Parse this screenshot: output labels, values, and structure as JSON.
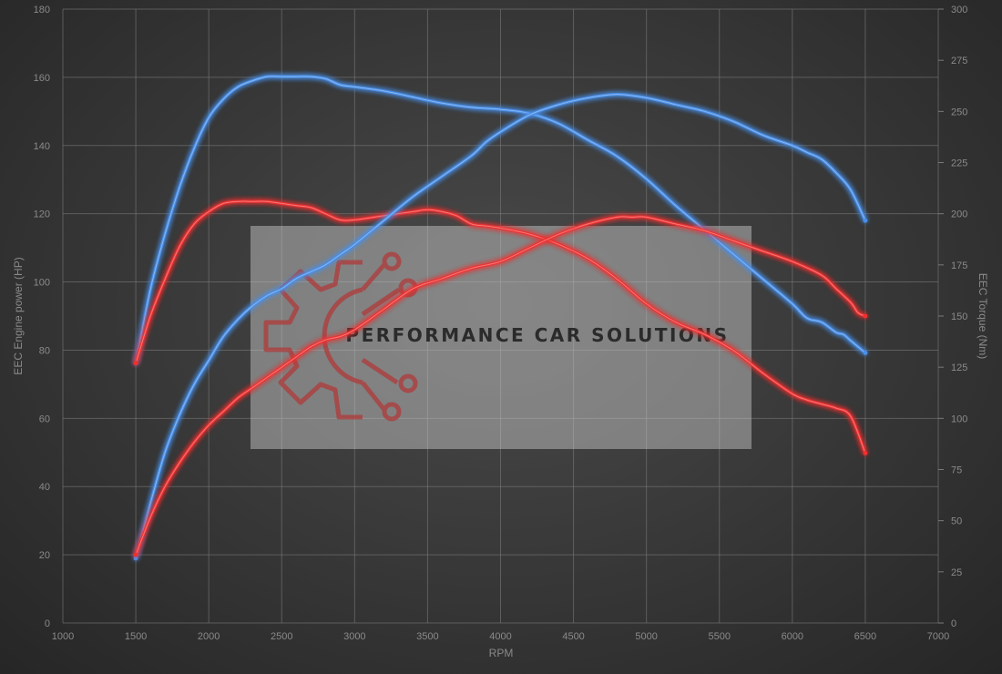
{
  "chart_data": {
    "type": "line",
    "title": "",
    "xlabel": "RPM",
    "ylabel_left": "EEC Engine power (HP)",
    "ylabel_right": "EEC Torque (Nm)",
    "xlim": [
      1000,
      7000
    ],
    "ylim_left": [
      0,
      180
    ],
    "ylim_right": [
      0,
      300
    ],
    "x_ticks": [
      "1000",
      "1500",
      "2000",
      "2500",
      "3000",
      "3500",
      "4000",
      "4500",
      "5000",
      "5500",
      "6000",
      "6500",
      "7000"
    ],
    "y_ticks_left": [
      "0",
      "20",
      "40",
      "60",
      "80",
      "100",
      "120",
      "140",
      "160",
      "180"
    ],
    "y_ticks_right": [
      "0",
      "25",
      "50",
      "75",
      "100",
      "125",
      "150",
      "175",
      "200",
      "225",
      "250",
      "275",
      "300"
    ],
    "grid": true,
    "series": [
      {
        "axis": "right",
        "color": "#4a8fe8",
        "x": [
          1500,
          1600,
          1700,
          1800,
          1900,
          2000,
          2100,
          2200,
          2300,
          2400,
          2500,
          2600,
          2700,
          2800,
          2900,
          3000,
          3200,
          3400,
          3600,
          3800,
          4000,
          4200,
          4400,
          4600,
          4800,
          5000,
          5200,
          5400,
          5600,
          5800,
          6000,
          6100,
          6200,
          6300,
          6350,
          6400,
          6500
        ],
        "values": [
          127,
          163,
          190,
          213,
          232,
          247,
          256,
          262,
          265,
          267,
          267,
          267,
          267,
          266,
          263,
          262,
          260,
          257,
          254,
          252,
          251,
          249,
          244,
          236,
          228,
          217,
          204,
          192,
          180,
          168,
          156,
          149,
          147,
          142,
          141,
          138,
          132
        ]
      },
      {
        "axis": "right",
        "color": "#ee3030",
        "x": [
          1500,
          1600,
          1700,
          1800,
          1900,
          2000,
          2100,
          2200,
          2300,
          2400,
          2500,
          2600,
          2700,
          2800,
          2900,
          3000,
          3200,
          3400,
          3500,
          3600,
          3700,
          3800,
          3900,
          4000,
          4200,
          4400,
          4600,
          4800,
          5000,
          5200,
          5400,
          5600,
          5800,
          6000,
          6100,
          6200,
          6300,
          6400,
          6500
        ],
        "values": [
          127,
          150,
          168,
          184,
          195,
          201,
          205,
          206,
          206,
          206,
          205,
          204,
          203,
          200,
          197,
          197,
          199,
          201,
          202,
          201,
          199,
          195,
          194,
          193,
          190,
          185,
          178,
          168,
          156,
          147,
          141,
          133,
          122,
          112,
          109,
          107,
          105,
          101,
          83
        ]
      },
      {
        "axis": "left",
        "color": "#4a8fe8",
        "x": [
          1500,
          1600,
          1700,
          1800,
          1900,
          2000,
          2100,
          2200,
          2300,
          2400,
          2500,
          2600,
          2700,
          2800,
          2900,
          3000,
          3200,
          3400,
          3600,
          3800,
          3900,
          4000,
          4200,
          4400,
          4600,
          4800,
          5000,
          5200,
          5400,
          5600,
          5800,
          6000,
          6100,
          6200,
          6300,
          6400,
          6500
        ],
        "values": [
          19,
          35,
          50,
          61,
          70,
          77,
          84,
          89,
          93,
          96,
          98,
          101,
          103,
          105,
          108,
          111,
          118,
          125,
          131,
          137,
          141,
          144,
          149,
          152,
          154,
          155,
          154,
          152,
          150,
          147,
          143,
          140,
          138,
          136,
          132,
          127,
          118
        ]
      },
      {
        "axis": "left",
        "color": "#ee3030",
        "x": [
          1500,
          1600,
          1700,
          1800,
          1900,
          2000,
          2100,
          2200,
          2300,
          2400,
          2500,
          2600,
          2700,
          2800,
          2900,
          3000,
          3200,
          3400,
          3600,
          3800,
          4000,
          4200,
          4400,
          4600,
          4800,
          4900,
          5000,
          5200,
          5400,
          5600,
          5800,
          6000,
          6200,
          6300,
          6400,
          6450,
          6500
        ],
        "values": [
          20,
          31,
          40,
          47,
          53,
          58,
          62,
          66,
          69,
          72,
          75,
          78,
          81,
          83,
          84,
          86,
          92,
          98,
          101,
          104,
          106,
          110,
          114,
          117,
          119,
          119,
          119,
          117,
          115,
          112,
          109,
          106,
          102,
          98,
          94,
          91,
          90
        ]
      }
    ]
  },
  "watermark": {
    "text": "PERFORMANCE CAR SOLUTIONS",
    "logo": "gear-circuit-logo",
    "logo_color": "#b03a3a"
  }
}
